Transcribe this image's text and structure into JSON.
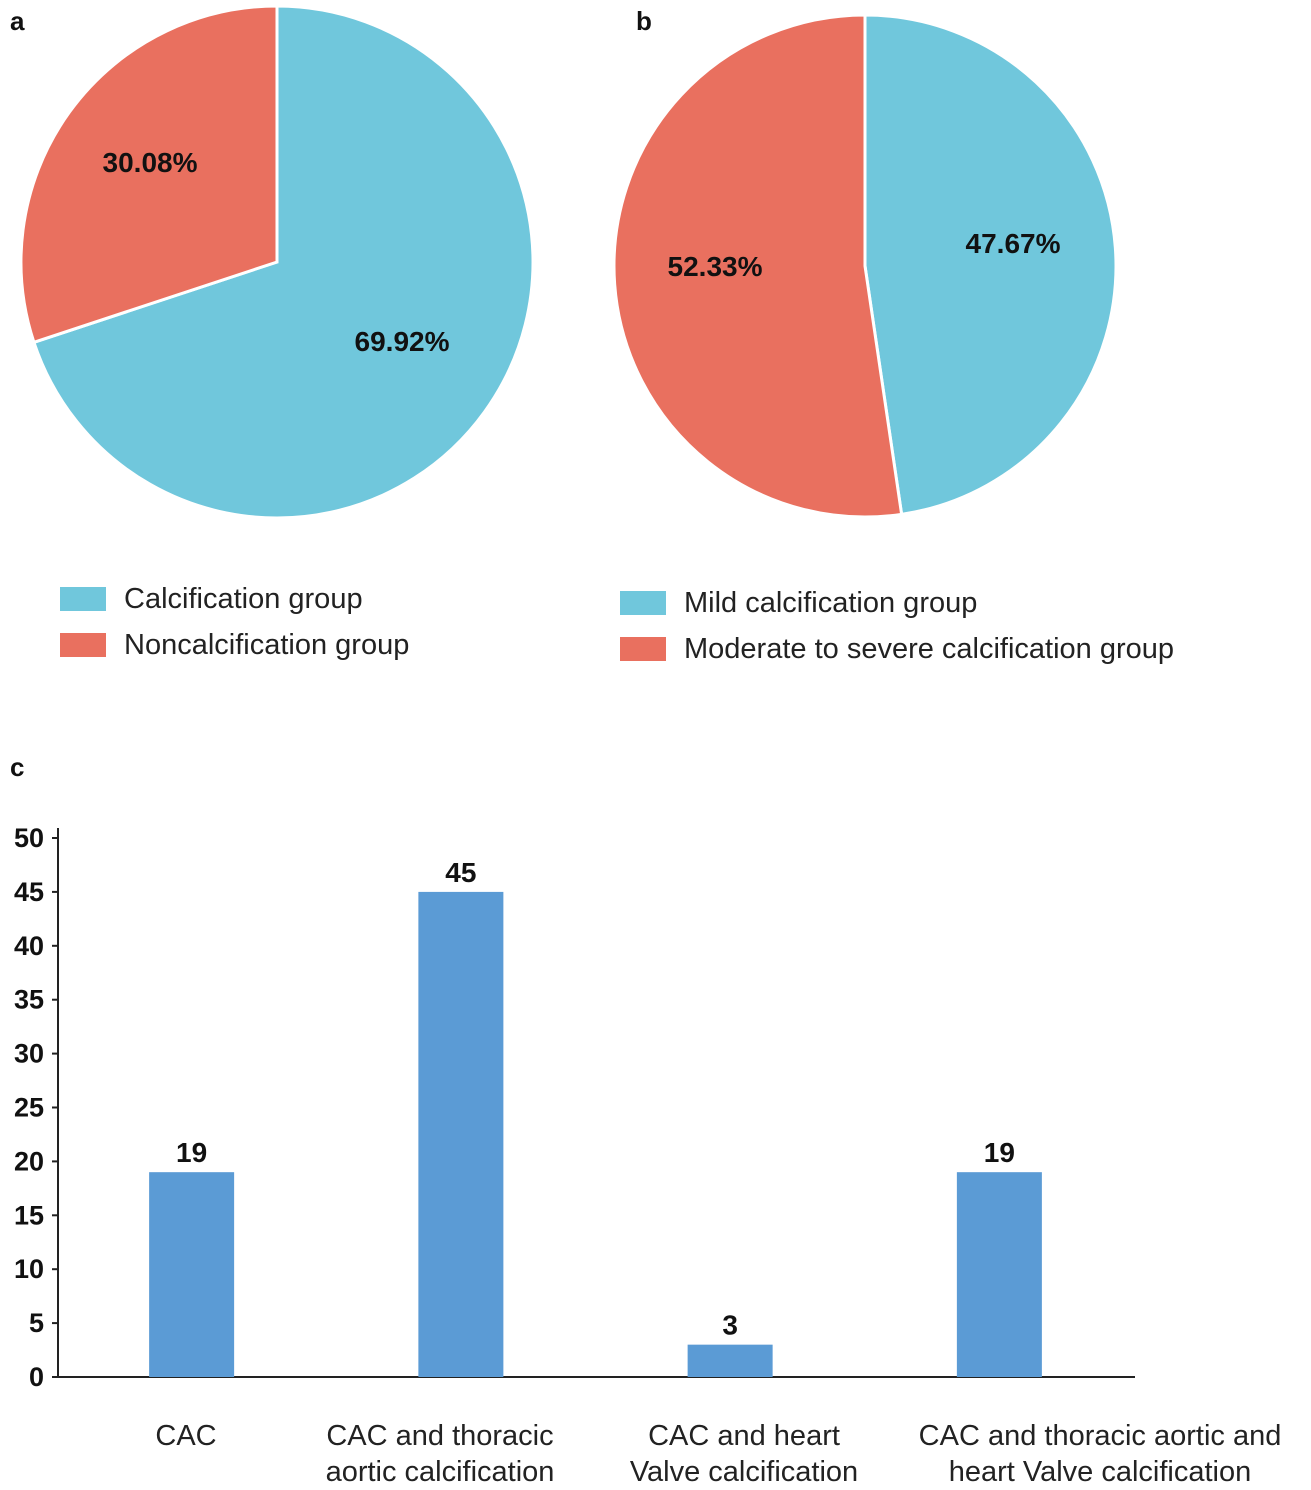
{
  "panels": {
    "a": "a",
    "b": "b",
    "c": "c"
  },
  "colors": {
    "blue_slice": "#70c7dc",
    "red_slice": "#e9705f",
    "bar": "#5b9bd5"
  },
  "chart_data": [
    {
      "type": "pie",
      "panel": "a",
      "slices": [
        {
          "label": "Calcification group",
          "value": 69.92,
          "display": "69.92%"
        },
        {
          "label": "Noncalcification group",
          "value": 30.08,
          "display": "30.08%"
        }
      ],
      "legend": [
        "Calcification group",
        "Noncalcification group"
      ]
    },
    {
      "type": "pie",
      "panel": "b",
      "slices": [
        {
          "label": "Mild calcification group",
          "value": 47.67,
          "display": "47.67%"
        },
        {
          "label": "Moderate to severe calcification group",
          "value": 52.33,
          "display": "52.33%"
        }
      ],
      "legend": [
        "Mild calcification group",
        "Moderate to severe calcification group"
      ]
    },
    {
      "type": "bar",
      "panel": "c",
      "categories": [
        [
          "CAC"
        ],
        [
          "CAC and thoracic",
          "aortic calcification"
        ],
        [
          "CAC and heart",
          "Valve calcification"
        ],
        [
          "CAC and thoracic aortic and",
          "heart Valve calcification"
        ]
      ],
      "values": [
        19,
        45,
        3,
        19
      ],
      "ylim": [
        0,
        50
      ],
      "yticks": [
        0,
        5,
        10,
        15,
        20,
        25,
        30,
        35,
        40,
        45,
        50
      ],
      "grid": false
    }
  ]
}
